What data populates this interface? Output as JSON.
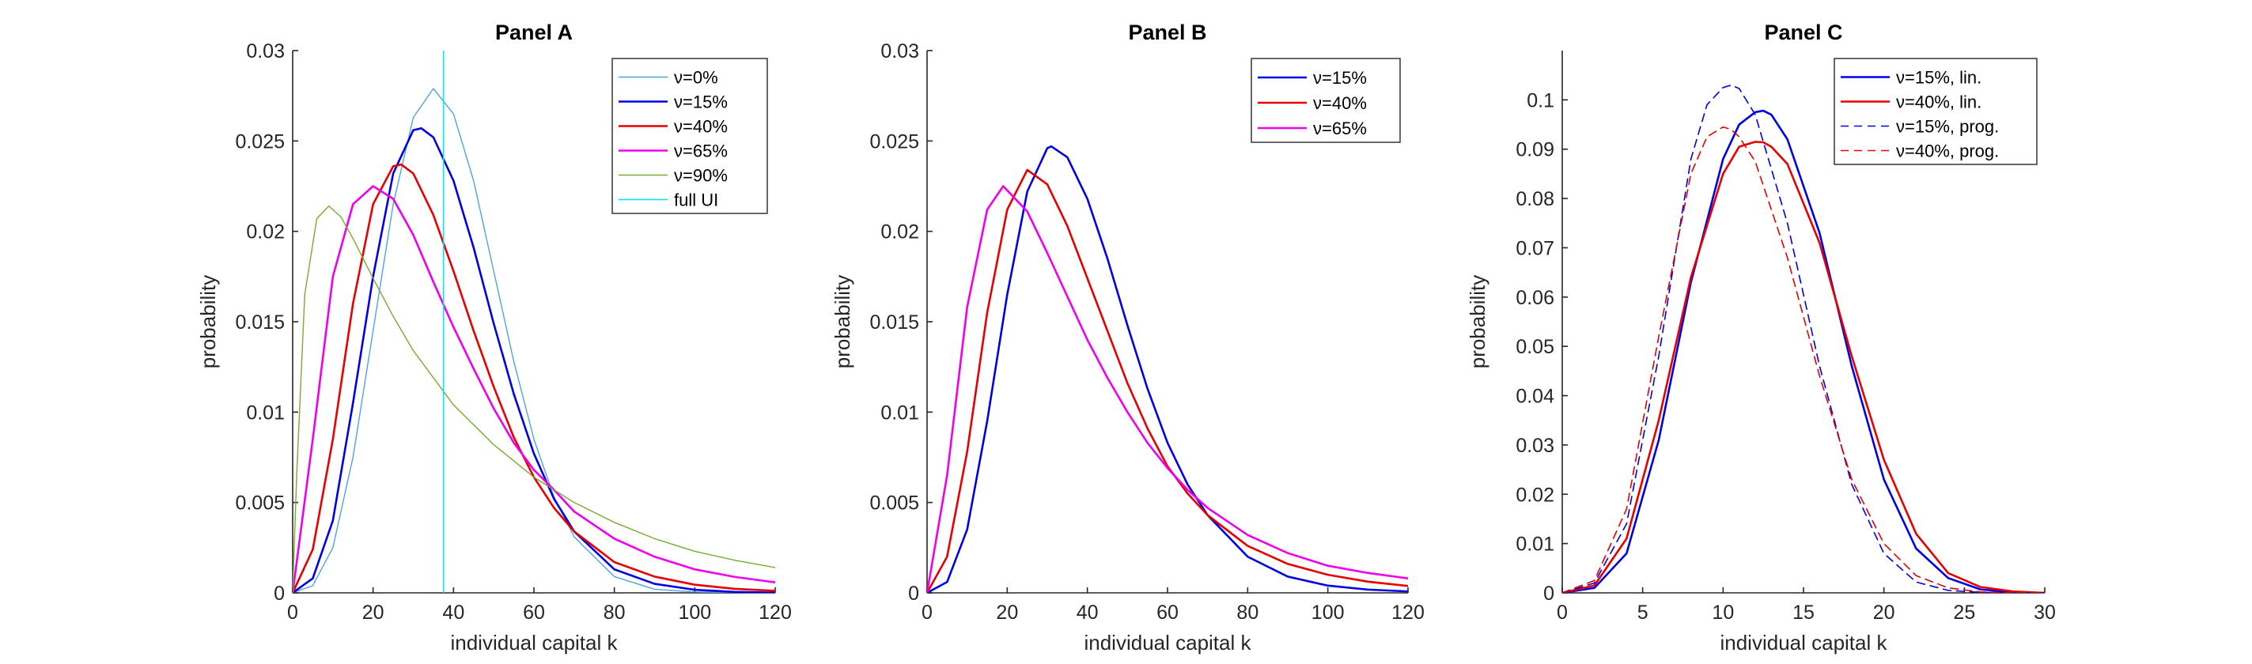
{
  "chart_data": [
    {
      "type": "line",
      "title": "Panel A",
      "xlabel": "individual capital k",
      "ylabel": "probability",
      "xlim": [
        0,
        120
      ],
      "ylim": [
        0,
        0.03
      ],
      "xticks": [
        0,
        20,
        40,
        60,
        80,
        100,
        120
      ],
      "yticks": [
        0,
        0.005,
        0.01,
        0.015,
        0.02,
        0.025,
        0.03
      ],
      "xtick_labels": [
        "0",
        "20",
        "40",
        "60",
        "80",
        "100",
        "120"
      ],
      "ytick_labels": [
        "0",
        "0.005",
        "0.01",
        "0.015",
        "0.02",
        "0.025",
        "0.03"
      ],
      "legend_position": "top-right",
      "grid": false,
      "series": [
        {
          "name": "ν=0%",
          "color": "#4fa3e0",
          "width": 1.4,
          "dash": "solid",
          "x": [
            0,
            5,
            10,
            15,
            20,
            25,
            30,
            35,
            40,
            45,
            50,
            55,
            60,
            65,
            70,
            80,
            90,
            100,
            110,
            120
          ],
          "y": [
            0,
            0.0004,
            0.0025,
            0.0075,
            0.0145,
            0.0215,
            0.0263,
            0.0279,
            0.0265,
            0.0228,
            0.0178,
            0.0128,
            0.0085,
            0.0053,
            0.0031,
            0.0009,
            0.0002,
            5e-05,
            1e-05,
            0
          ]
        },
        {
          "name": "ν=15%",
          "color": "#0000e6",
          "width": 2.6,
          "dash": "solid",
          "x": [
            0,
            5,
            10,
            15,
            20,
            25,
            30,
            32,
            35,
            40,
            45,
            50,
            55,
            60,
            65,
            70,
            80,
            90,
            100,
            110,
            120
          ],
          "y": [
            0,
            0.0008,
            0.004,
            0.0105,
            0.0175,
            0.0232,
            0.0256,
            0.0257,
            0.0252,
            0.0228,
            0.0191,
            0.0149,
            0.011,
            0.0077,
            0.0052,
            0.0034,
            0.0013,
            0.0005,
            0.00017,
            5e-05,
            1e-05
          ]
        },
        {
          "name": "ν=40%",
          "color": "#e60000",
          "width": 2.6,
          "dash": "solid",
          "x": [
            0,
            5,
            10,
            15,
            20,
            25,
            27,
            30,
            35,
            40,
            45,
            50,
            55,
            60,
            65,
            70,
            80,
            90,
            100,
            110,
            120
          ],
          "y": [
            0,
            0.0024,
            0.0085,
            0.016,
            0.0215,
            0.0236,
            0.0237,
            0.0232,
            0.0209,
            0.0178,
            0.0145,
            0.0114,
            0.0086,
            0.0064,
            0.0047,
            0.0034,
            0.0017,
            0.0009,
            0.00045,
            0.00022,
            0.00011
          ]
        },
        {
          "name": "ν=65%",
          "color": "#ee00ee",
          "width": 2.6,
          "dash": "solid",
          "x": [
            0,
            5,
            10,
            15,
            20,
            25,
            30,
            35,
            40,
            45,
            50,
            55,
            60,
            65,
            70,
            80,
            90,
            100,
            110,
            120
          ],
          "y": [
            0,
            0.0085,
            0.0175,
            0.0215,
            0.0225,
            0.0218,
            0.0198,
            0.0172,
            0.0147,
            0.0124,
            0.0102,
            0.0083,
            0.0068,
            0.0057,
            0.0045,
            0.003,
            0.002,
            0.0013,
            0.00088,
            0.00058
          ]
        },
        {
          "name": "ν=90%",
          "color": "#77ac30",
          "width": 1.4,
          "dash": "solid",
          "x": [
            0,
            1,
            3,
            6,
            9,
            12,
            15,
            20,
            25,
            30,
            40,
            50,
            60,
            70,
            80,
            90,
            100,
            110,
            120
          ],
          "y": [
            0,
            0.0065,
            0.0165,
            0.0207,
            0.0214,
            0.0208,
            0.0196,
            0.0174,
            0.0153,
            0.0134,
            0.0104,
            0.0082,
            0.0064,
            0.005,
            0.0039,
            0.003,
            0.0023,
            0.0018,
            0.0014
          ]
        },
        {
          "name": "full UI",
          "color": "#00e5ee",
          "width": 1.6,
          "dash": "solid",
          "x": [
            37.5,
            37.5
          ],
          "y": [
            0,
            0.03
          ]
        }
      ]
    },
    {
      "type": "line",
      "title": "Panel B",
      "xlabel": "individual capital k",
      "ylabel": "probability",
      "xlim": [
        0,
        120
      ],
      "ylim": [
        0,
        0.03
      ],
      "xticks": [
        0,
        20,
        40,
        60,
        80,
        100,
        120
      ],
      "yticks": [
        0,
        0.005,
        0.01,
        0.015,
        0.02,
        0.025,
        0.03
      ],
      "xtick_labels": [
        "0",
        "20",
        "40",
        "60",
        "80",
        "100",
        "120"
      ],
      "ytick_labels": [
        "0",
        "0.005",
        "0.01",
        "0.015",
        "0.02",
        "0.025",
        "0.03"
      ],
      "legend_position": "top-right",
      "grid": false,
      "series": [
        {
          "name": "ν=15%",
          "color": "#0000e6",
          "width": 2.6,
          "dash": "solid",
          "x": [
            0,
            5,
            10,
            15,
            20,
            25,
            30,
            31,
            35,
            40,
            45,
            50,
            55,
            60,
            65,
            70,
            80,
            90,
            100,
            110,
            120
          ],
          "y": [
            0,
            0.0006,
            0.0035,
            0.0095,
            0.0165,
            0.0222,
            0.0246,
            0.0247,
            0.0241,
            0.0218,
            0.0185,
            0.0148,
            0.0113,
            0.0083,
            0.006,
            0.0043,
            0.002,
            0.0009,
            0.0004,
            0.00018,
            8e-05
          ]
        },
        {
          "name": "ν=40%",
          "color": "#e60000",
          "width": 2.6,
          "dash": "solid",
          "x": [
            0,
            5,
            10,
            15,
            20,
            25,
            30,
            35,
            40,
            45,
            50,
            55,
            60,
            65,
            70,
            80,
            90,
            100,
            110,
            120
          ],
          "y": [
            0,
            0.002,
            0.0078,
            0.0155,
            0.0212,
            0.0234,
            0.0226,
            0.0203,
            0.0174,
            0.0145,
            0.0116,
            0.0091,
            0.007,
            0.0055,
            0.0043,
            0.0026,
            0.0016,
            0.001,
            0.00062,
            0.00038
          ]
        },
        {
          "name": "ν=65%",
          "color": "#ee00ee",
          "width": 2.6,
          "dash": "solid",
          "x": [
            0,
            5,
            10,
            15,
            19,
            25,
            30,
            35,
            40,
            45,
            50,
            55,
            60,
            65,
            70,
            80,
            90,
            100,
            110,
            120
          ],
          "y": [
            0,
            0.0065,
            0.0158,
            0.0212,
            0.0225,
            0.0211,
            0.0188,
            0.0164,
            0.014,
            0.0119,
            0.01,
            0.0083,
            0.0069,
            0.0057,
            0.0047,
            0.0032,
            0.0022,
            0.0015,
            0.0011,
            0.0008
          ]
        }
      ]
    },
    {
      "type": "line",
      "title": "Panel C",
      "xlabel": "individual capital k",
      "ylabel": "probability",
      "xlim": [
        0,
        30
      ],
      "ylim": [
        0,
        0.11
      ],
      "xticks": [
        0,
        5,
        10,
        15,
        20,
        25,
        30
      ],
      "yticks": [
        0,
        0.01,
        0.02,
        0.03,
        0.04,
        0.05,
        0.06,
        0.07,
        0.08,
        0.09,
        0.1
      ],
      "xtick_labels": [
        "0",
        "5",
        "10",
        "15",
        "20",
        "25",
        "30"
      ],
      "ytick_labels": [
        "0",
        "0.01",
        "0.02",
        "0.03",
        "0.04",
        "0.05",
        "0.06",
        "0.07",
        "0.08",
        "0.09",
        "0.1"
      ],
      "legend_position": "top-right",
      "grid": false,
      "series": [
        {
          "name": "ν=15%, lin.",
          "color": "#0000e6",
          "width": 2.6,
          "dash": "solid",
          "x": [
            0,
            2,
            4,
            6,
            8,
            10,
            11,
            12,
            12.5,
            13,
            14,
            16,
            18,
            20,
            22,
            24,
            26,
            28,
            30
          ],
          "y": [
            0,
            0.001,
            0.008,
            0.031,
            0.063,
            0.088,
            0.095,
            0.0975,
            0.0978,
            0.097,
            0.092,
            0.073,
            0.046,
            0.023,
            0.009,
            0.003,
            0.0007,
            0.0001,
            0
          ]
        },
        {
          "name": "ν=40%, lin.",
          "color": "#e60000",
          "width": 2.6,
          "dash": "solid",
          "x": [
            0,
            2,
            4,
            6,
            8,
            10,
            11,
            12,
            12.5,
            13,
            14,
            16,
            18,
            20,
            22,
            24,
            26,
            28,
            30
          ],
          "y": [
            0,
            0.0015,
            0.011,
            0.035,
            0.064,
            0.085,
            0.0905,
            0.0915,
            0.0914,
            0.0905,
            0.087,
            0.071,
            0.048,
            0.027,
            0.012,
            0.004,
            0.0012,
            0.0003,
            0
          ]
        },
        {
          "name": "ν=15%, prog.",
          "color": "#0000e6",
          "width": 1.6,
          "dash": "dashed",
          "x": [
            0,
            2,
            4,
            6,
            8,
            9,
            10,
            10.5,
            11,
            12,
            14,
            16,
            18,
            20,
            22,
            24,
            26,
            28,
            30
          ],
          "y": [
            0,
            0.002,
            0.014,
            0.048,
            0.088,
            0.099,
            0.1025,
            0.103,
            0.1023,
            0.097,
            0.075,
            0.046,
            0.022,
            0.008,
            0.0022,
            0.0005,
            0.0001,
            0,
            0
          ]
        },
        {
          "name": "ν=40%, prog.",
          "color": "#e60000",
          "width": 1.6,
          "dash": "dashed",
          "x": [
            0,
            2,
            4,
            6,
            8,
            9,
            10,
            10.5,
            11,
            12,
            14,
            16,
            18,
            20,
            22,
            24,
            26,
            28,
            30
          ],
          "y": [
            0,
            0.0025,
            0.017,
            0.052,
            0.085,
            0.0925,
            0.0945,
            0.094,
            0.0925,
            0.0875,
            0.068,
            0.044,
            0.023,
            0.01,
            0.0035,
            0.001,
            0.0002,
            0,
            0
          ]
        }
      ]
    }
  ]
}
